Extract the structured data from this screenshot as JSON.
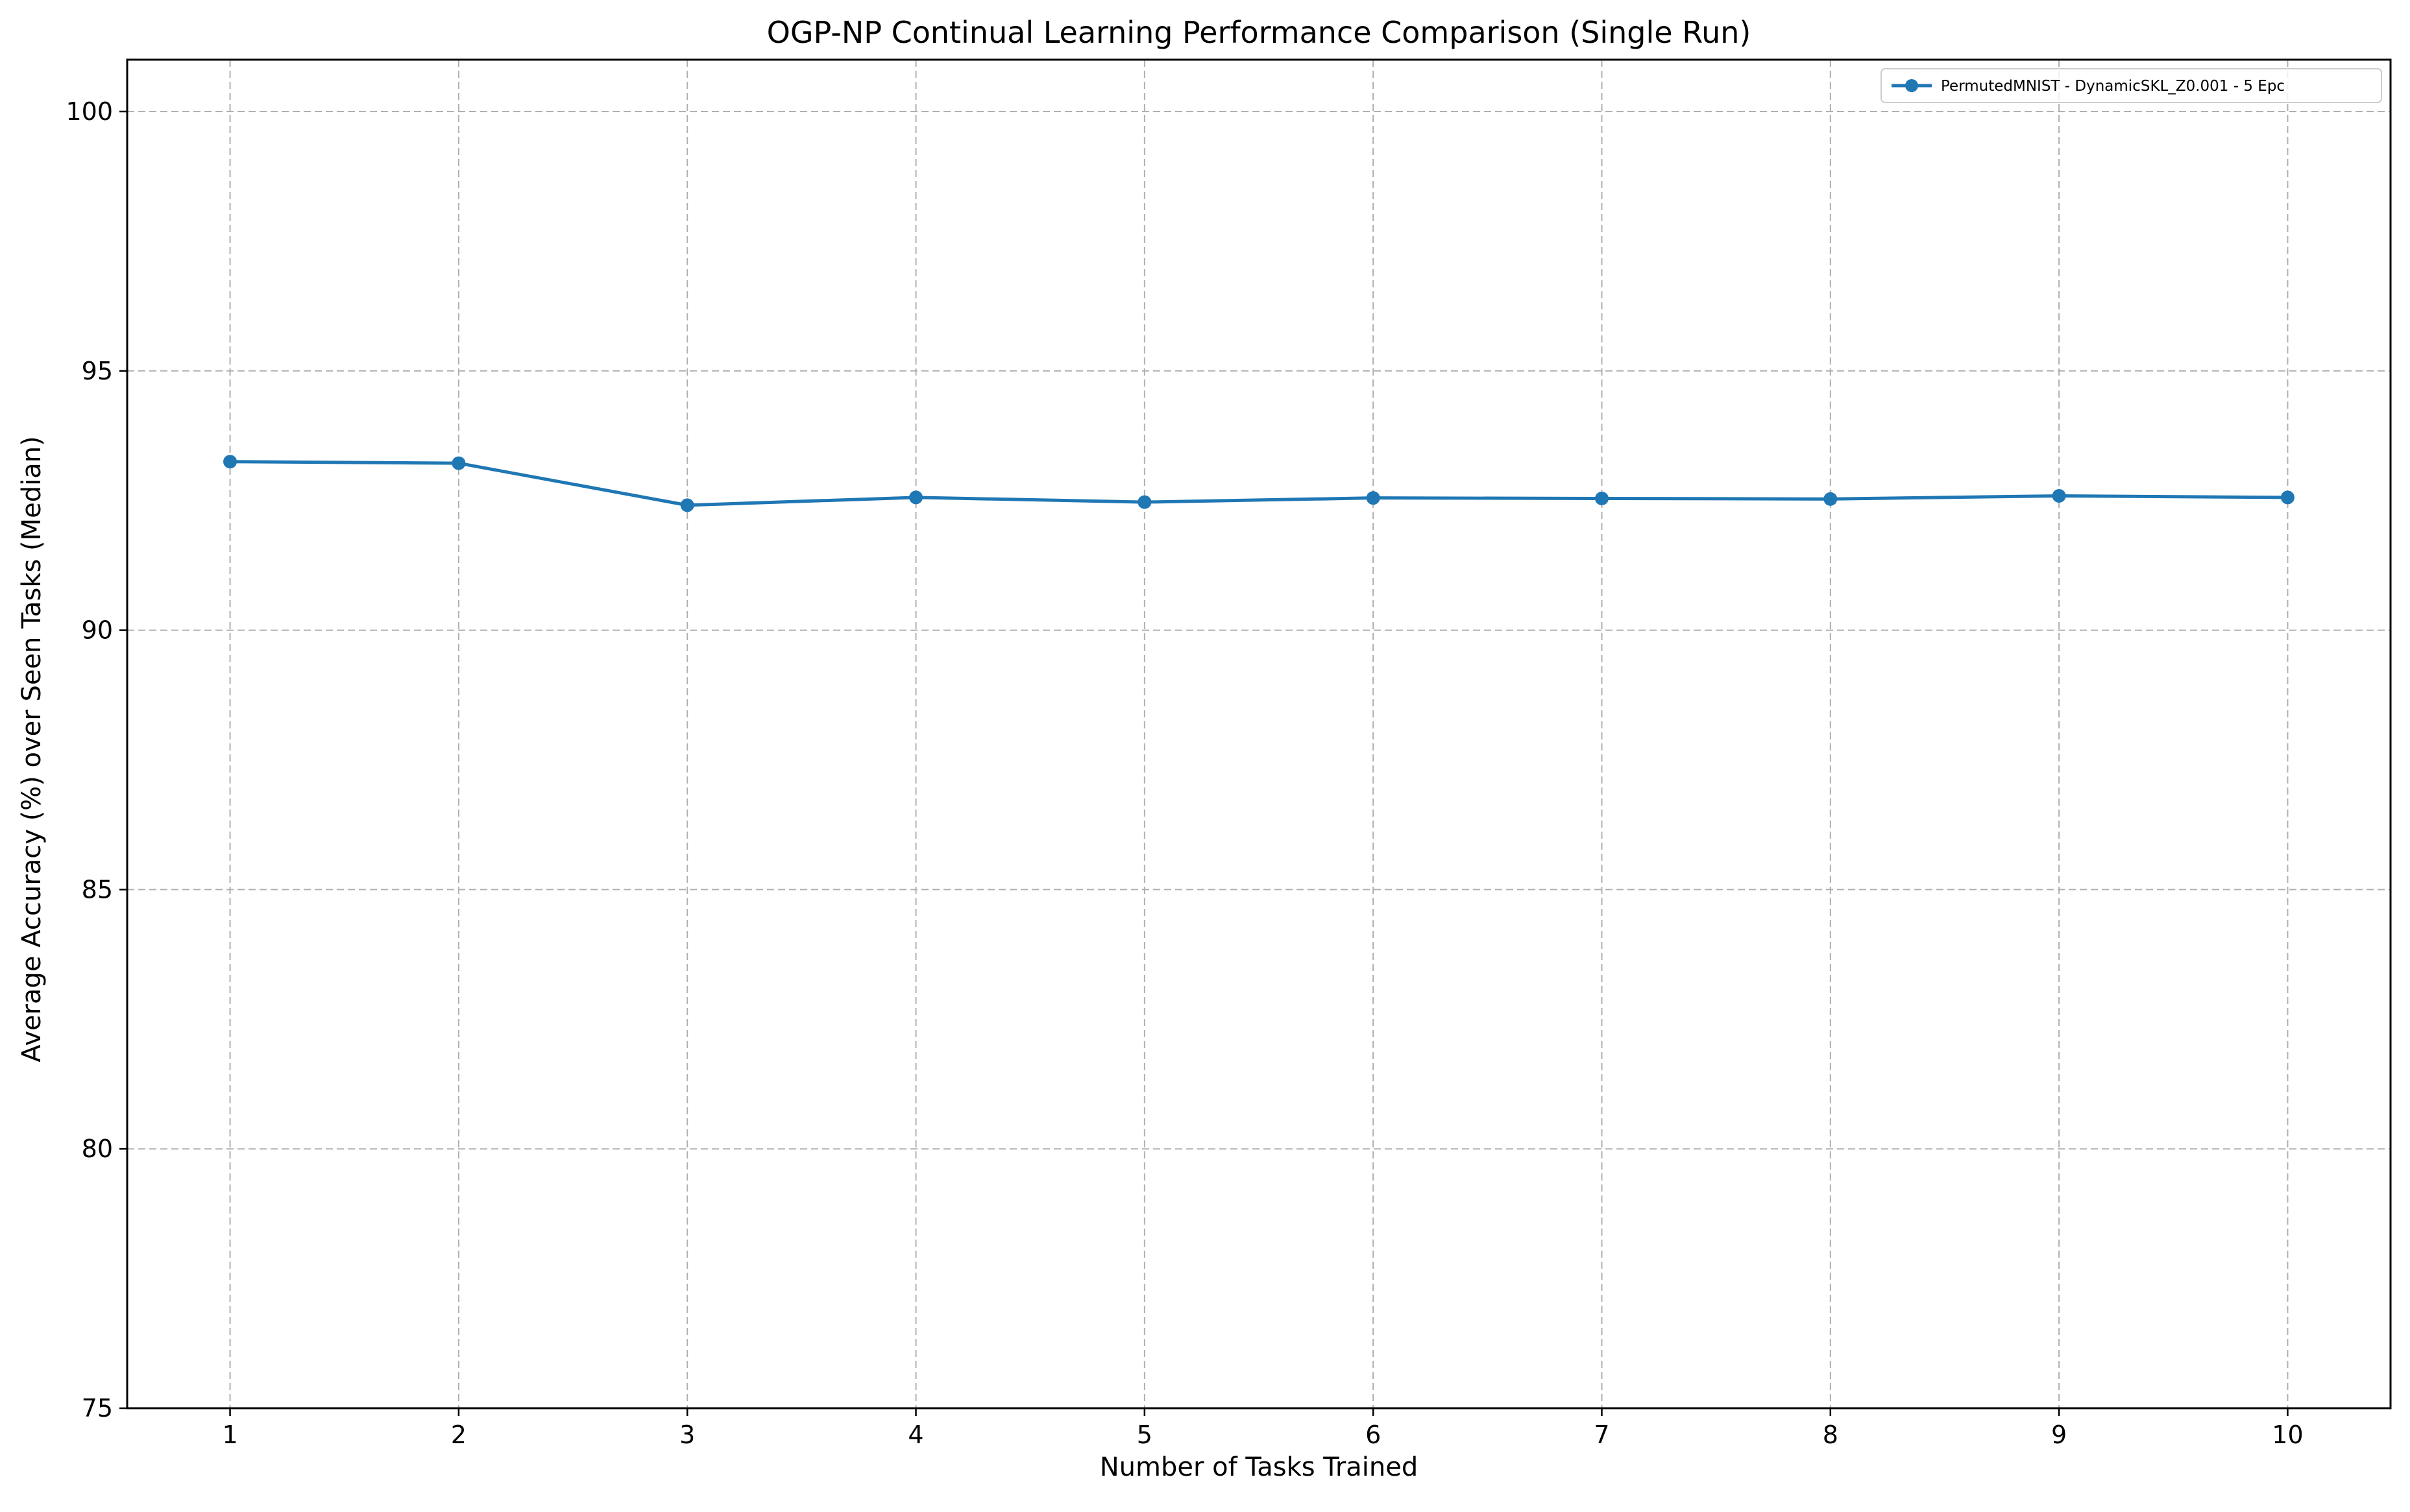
{
  "chart_data": {
    "type": "line",
    "title": "OGP-NP Continual Learning Performance Comparison (Single Run)",
    "xlabel": "Number of Tasks Trained",
    "ylabel": "Average Accuracy (%) over Seen Tasks (Median)",
    "xlim": [
      0.55,
      10.45
    ],
    "ylim": [
      75,
      101
    ],
    "xticks": [
      1,
      2,
      3,
      4,
      5,
      6,
      7,
      8,
      9,
      10
    ],
    "yticks": [
      75,
      80,
      85,
      90,
      95,
      100
    ],
    "grid": true,
    "legend_position": "top-right",
    "series": [
      {
        "name": "PermutedMNIST - DynamicSKL_Z0.001 - 5 Epc",
        "color": "#1f77b4",
        "marker": "circle",
        "x": [
          1,
          2,
          3,
          4,
          5,
          6,
          7,
          8,
          9,
          10
        ],
        "y": [
          93.25,
          93.22,
          92.41,
          92.56,
          92.47,
          92.55,
          92.54,
          92.53,
          92.59,
          92.56
        ]
      }
    ]
  }
}
